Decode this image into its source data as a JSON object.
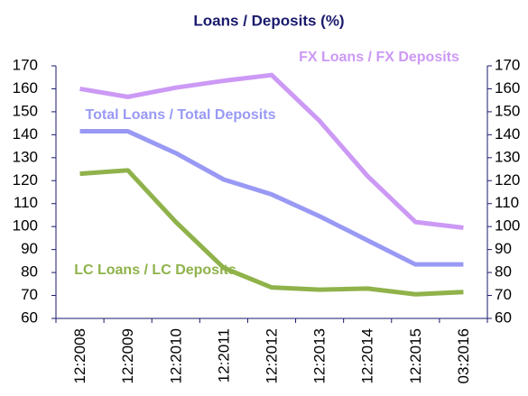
{
  "chart_data": {
    "type": "line",
    "title": "Loans / Deposits (%)",
    "categories": [
      "12:2008",
      "12:2009",
      "12:2010",
      "12:2011",
      "12:2012",
      "12:2013",
      "12:2014",
      "12:2015",
      "03:2016"
    ],
    "series": [
      {
        "name": "FX Loans / FX Deposits",
        "color": "#cc99f5",
        "values": [
          160,
          156.5,
          160.5,
          163.5,
          166,
          146,
          122,
          102,
          99.5
        ]
      },
      {
        "name": "Total Loans / Total Deposits",
        "color": "#9999f5",
        "values": [
          141.5,
          141.5,
          132,
          120.5,
          114,
          104.5,
          94,
          83.5,
          83.5
        ]
      },
      {
        "name": "LC Loans / LC Deposits",
        "color": "#8fb24a",
        "values": [
          123,
          124.5,
          102,
          82,
          73.5,
          72.5,
          73,
          70.5,
          71.5
        ]
      }
    ],
    "ylim": [
      60,
      170
    ],
    "yticks": [
      60,
      70,
      80,
      90,
      100,
      110,
      120,
      130,
      140,
      150,
      160,
      170
    ],
    "y2lim": [
      60,
      170
    ],
    "y2ticks": [
      60,
      70,
      80,
      90,
      100,
      110,
      120,
      130,
      140,
      150,
      160,
      170
    ]
  }
}
